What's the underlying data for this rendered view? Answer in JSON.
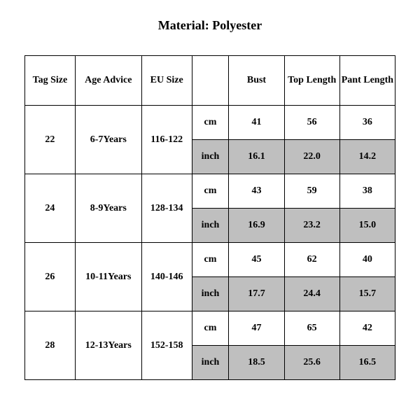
{
  "title": "Material: Polyester",
  "table": {
    "columns": [
      "Tag Size",
      "Age Advice",
      "EU Size",
      "",
      "Bust",
      "Top Length",
      "Pant Length"
    ],
    "unit_labels": {
      "cm": "cm",
      "inch": "inch"
    },
    "shaded_bg": "#bfbfbf",
    "border_color": "#000000",
    "header_fontsize": 14,
    "cell_fontsize": 14,
    "rows": [
      {
        "tag": "22",
        "age": "6-7Years",
        "eu": "116-122",
        "cm": {
          "bust": "41",
          "top": "56",
          "pant": "36"
        },
        "inch": {
          "bust": "16.1",
          "top": "22.0",
          "pant": "14.2"
        }
      },
      {
        "tag": "24",
        "age": "8-9Years",
        "eu": "128-134",
        "cm": {
          "bust": "43",
          "top": "59",
          "pant": "38"
        },
        "inch": {
          "bust": "16.9",
          "top": "23.2",
          "pant": "15.0"
        }
      },
      {
        "tag": "26",
        "age": "10-11Years",
        "eu": "140-146",
        "cm": {
          "bust": "45",
          "top": "62",
          "pant": "40"
        },
        "inch": {
          "bust": "17.7",
          "top": "24.4",
          "pant": "15.7"
        }
      },
      {
        "tag": "28",
        "age": "12-13Years",
        "eu": "152-158",
        "cm": {
          "bust": "47",
          "top": "65",
          "pant": "42"
        },
        "inch": {
          "bust": "18.5",
          "top": "25.6",
          "pant": "16.5"
        }
      }
    ]
  }
}
